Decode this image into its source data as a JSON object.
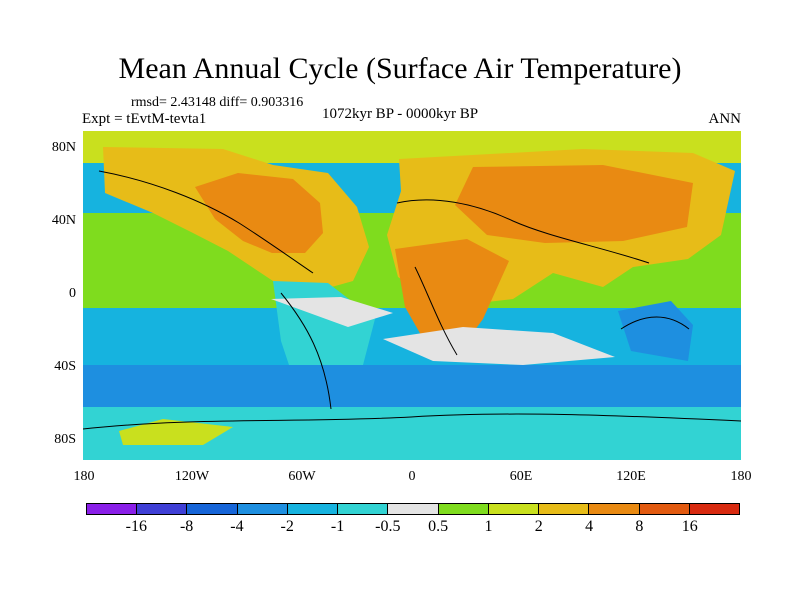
{
  "title": "Mean Annual Cycle (Surface Air Temperature)",
  "stats": "rmsd= 2.43148 diff= 0.903316",
  "left_label": "Expt = tEvtM-tevta1",
  "center_label": "1072kyr BP - 0000kyr BP",
  "right_label": "ANN",
  "lat_labels": [
    "80N",
    "40N",
    "0",
    "40S",
    "80S"
  ],
  "lon_labels": [
    "180",
    "120W",
    "60W",
    "0",
    "60E",
    "120E",
    "180"
  ],
  "colorbar": {
    "labels": [
      "-16",
      "-8",
      "-4",
      "-2",
      "-1",
      "-0.5",
      "0.5",
      "1",
      "2",
      "4",
      "8",
      "16"
    ],
    "colors": [
      "#8a1fe8",
      "#3f3fd6",
      "#1665d8",
      "#1e8fe0",
      "#16b3df",
      "#32d3d3",
      "#e4e4e4",
      "#7fdc1e",
      "#c9e01e",
      "#e7bc18",
      "#e98a12",
      "#e25a10",
      "#d82a10"
    ]
  }
}
